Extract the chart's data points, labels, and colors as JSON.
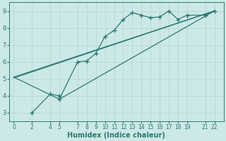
{
  "xlabel": "Humidex (Indice chaleur)",
  "bg_color": "#cce8e8",
  "grid_color": "#b8d8d8",
  "line_color": "#2d7a6e",
  "xlim": [
    -0.5,
    23
  ],
  "ylim": [
    2.5,
    9.5
  ],
  "xticks": [
    0,
    2,
    4,
    5,
    7,
    8,
    9,
    10,
    11,
    12,
    13,
    14,
    15,
    16,
    17,
    18,
    19,
    21,
    22
  ],
  "yticks": [
    3,
    4,
    5,
    6,
    7,
    8,
    9
  ],
  "marked_x": [
    2,
    4,
    5,
    5,
    7,
    8,
    9,
    10,
    11,
    12,
    13,
    14,
    15,
    16,
    17,
    18,
    19,
    21,
    22
  ],
  "marked_y": [
    3.0,
    4.1,
    4.0,
    3.8,
    6.0,
    6.05,
    6.5,
    7.5,
    7.85,
    8.5,
    8.9,
    8.75,
    8.6,
    8.65,
    9.0,
    8.5,
    8.75,
    8.75,
    9.0
  ],
  "line2_x": [
    0,
    5,
    22
  ],
  "line2_y": [
    5.1,
    3.8,
    9.0
  ],
  "line3_x": [
    0,
    22
  ],
  "line3_y": [
    5.1,
    9.0
  ],
  "line4_x": [
    0,
    22
  ],
  "line4_y": [
    5.05,
    9.0
  ]
}
